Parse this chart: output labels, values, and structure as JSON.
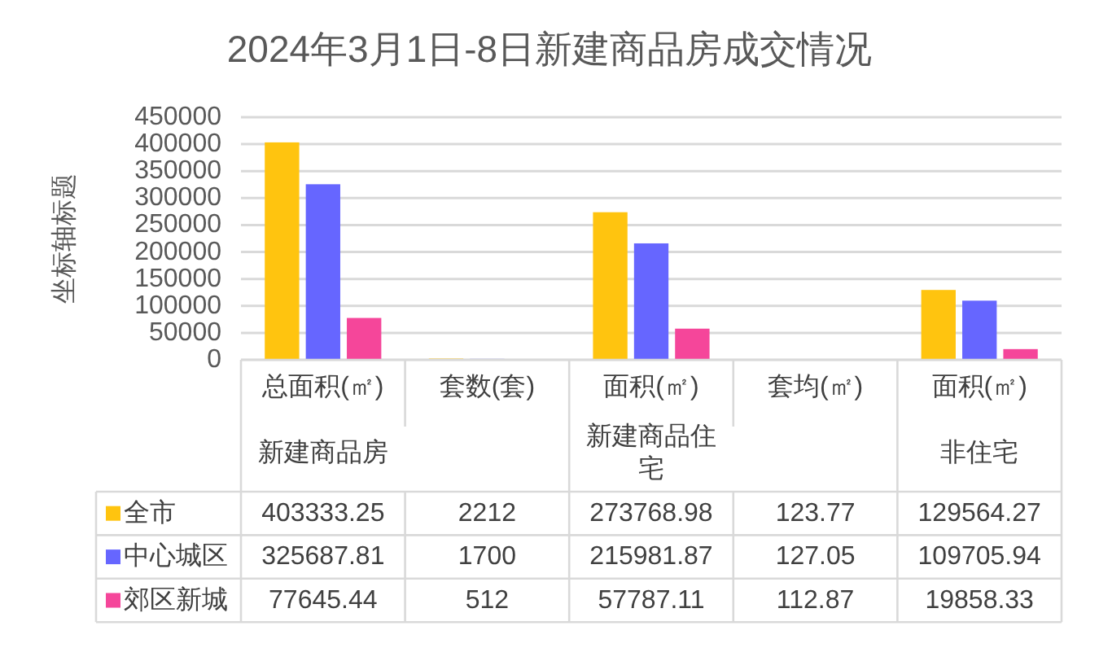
{
  "chart_data": {
    "type": "bar",
    "title": "2024年3月1日-8日新建商品房成交情况",
    "ylabel": "坐标轴标题",
    "categories": [
      "总面积(㎡)",
      "套数(套)",
      "面积(㎡)",
      "套均(㎡)",
      "面积(㎡)"
    ],
    "annotations": [
      "新建商品房",
      "新建商品住宅",
      "非住宅"
    ],
    "series": [
      {
        "name": "全市",
        "color": "#ffc40f",
        "values": [
          403333.25,
          2212,
          273768.98,
          123.77,
          129564.27
        ]
      },
      {
        "name": "中心城区",
        "color": "#6666ff",
        "values": [
          325687.81,
          1700,
          215981.87,
          127.05,
          109705.94
        ]
      },
      {
        "name": "郊区新城",
        "color": "#f5469a",
        "values": [
          77645.44,
          512,
          57787.11,
          112.87,
          19858.33
        ]
      }
    ],
    "ylim": [
      0,
      450000
    ],
    "yticks": [
      0,
      50000,
      100000,
      150000,
      200000,
      250000,
      300000,
      350000,
      400000,
      450000
    ],
    "grid": "y",
    "legend": "bottom left",
    "data_labels": true
  }
}
